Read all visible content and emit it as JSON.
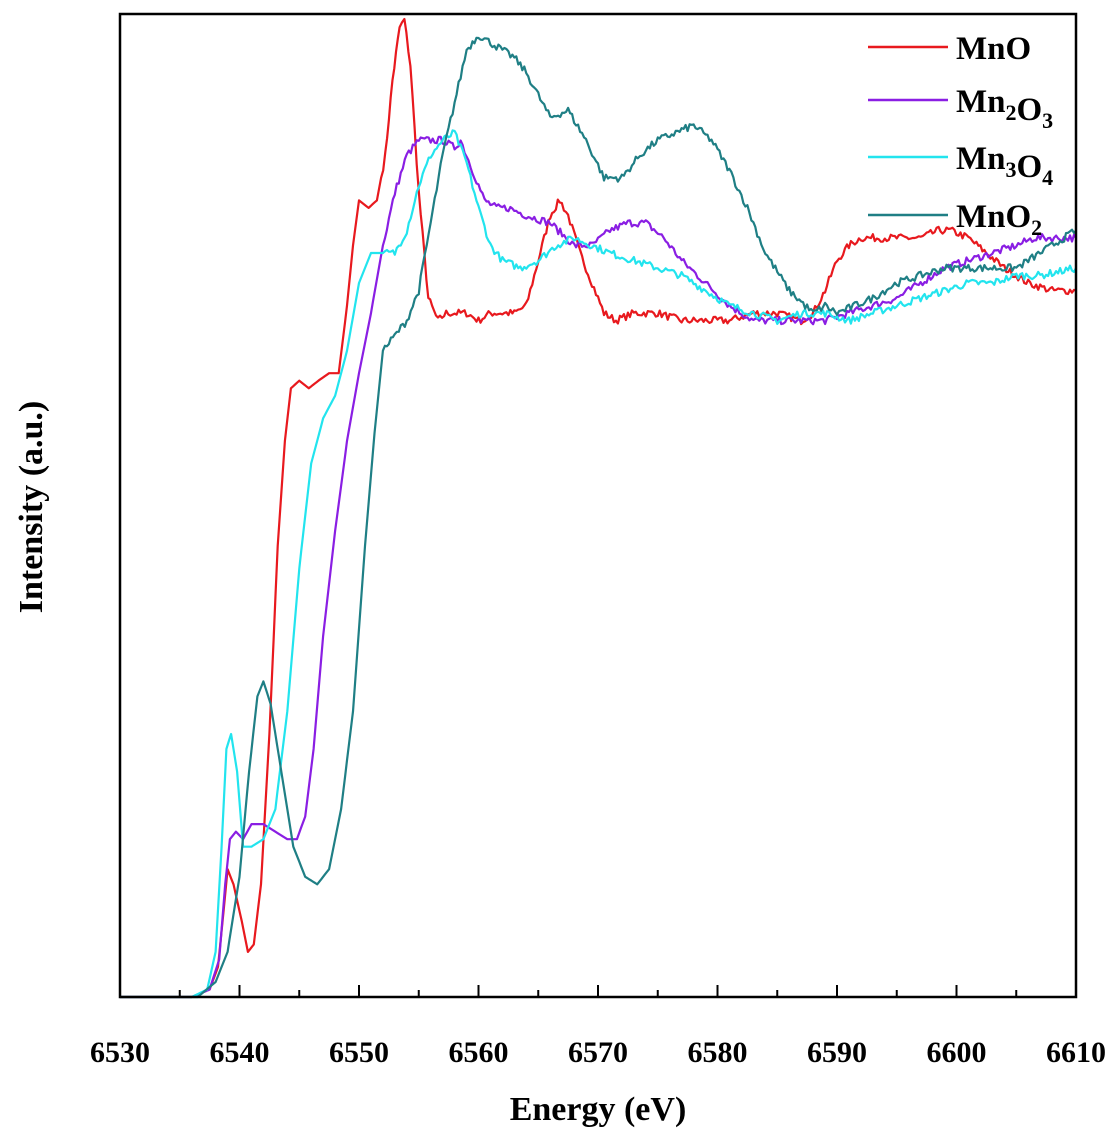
{
  "chart_data": {
    "type": "line",
    "title": "",
    "xlabel": "Energy (eV)",
    "ylabel": "Intensity (a.u.)",
    "xlim": [
      6530,
      6610
    ],
    "ylim": [
      0,
      1.3
    ],
    "xticks": [
      6530,
      6540,
      6550,
      6560,
      6570,
      6580,
      6590,
      6600,
      6610
    ],
    "y_tick_labels": false,
    "grid": false,
    "legend_position": "top-right",
    "series": [
      {
        "name": "MnO",
        "legend_parts": [
          {
            "t": "MnO",
            "sub": false
          }
        ],
        "color": "#e8191e",
        "x": [
          6530,
          6536,
          6537.5,
          6538.2,
          6538.7,
          6539.0,
          6539.5,
          6540.2,
          6540.7,
          6541.2,
          6541.8,
          6542.5,
          6543.2,
          6543.8,
          6544.3,
          6545.0,
          6545.8,
          6546.6,
          6547.5,
          6548.3,
          6549.0,
          6549.5,
          6550.0,
          6550.8,
          6551.5,
          6552.2,
          6552.8,
          6553.4,
          6553.8,
          6554.3,
          6555.0,
          6555.8,
          6556.6,
          6557.3,
          6558.0,
          6559.0,
          6560.0,
          6561.0,
          6562.0,
          6563.0,
          6564.0,
          6565.0,
          6566.0,
          6566.8,
          6567.5,
          6568.5,
          6569.5,
          6570.5,
          6571.5,
          6573.0,
          6575.0,
          6577.0,
          6579.0,
          6581.0,
          6583.0,
          6585.0,
          6587.0,
          6588.0,
          6589.0,
          6590.0,
          6591.0,
          6592.0,
          6593.0,
          6595.0,
          6597.0,
          6598.5,
          6599.5,
          6601.0,
          6602.5,
          6604.0,
          6606.0,
          6608.0,
          6610.0
        ],
        "y": [
          0.0,
          0.0,
          0.01,
          0.04,
          0.12,
          0.17,
          0.15,
          0.1,
          0.06,
          0.07,
          0.15,
          0.35,
          0.6,
          0.74,
          0.81,
          0.82,
          0.81,
          0.82,
          0.83,
          0.83,
          0.92,
          1.0,
          1.06,
          1.05,
          1.06,
          1.12,
          1.22,
          1.29,
          1.3,
          1.24,
          1.07,
          0.93,
          0.9,
          0.91,
          0.91,
          0.91,
          0.9,
          0.91,
          0.91,
          0.91,
          0.92,
          0.98,
          1.04,
          1.06,
          1.04,
          0.99,
          0.95,
          0.91,
          0.9,
          0.91,
          0.91,
          0.9,
          0.9,
          0.9,
          0.91,
          0.91,
          0.9,
          0.91,
          0.94,
          0.98,
          1.0,
          1.01,
          1.01,
          1.01,
          1.01,
          1.02,
          1.02,
          1.01,
          0.99,
          0.97,
          0.95,
          0.94,
          0.94
        ]
      },
      {
        "name": "Mn2O3",
        "legend_parts": [
          {
            "t": "Mn",
            "sub": false
          },
          {
            "t": "2",
            "sub": true
          },
          {
            "t": "O",
            "sub": false
          },
          {
            "t": "3",
            "sub": true
          }
        ],
        "color": "#8a1ee3",
        "x": [
          6530,
          6536,
          6537.5,
          6538.3,
          6538.8,
          6539.2,
          6539.7,
          6540.3,
          6541.0,
          6542.0,
          6543.0,
          6544.0,
          6544.8,
          6545.5,
          6546.2,
          6547.0,
          6548.0,
          6549.0,
          6550.0,
          6551.0,
          6552.0,
          6553.0,
          6554.0,
          6555.0,
          6556.0,
          6557.0,
          6558.0,
          6558.5,
          6559.5,
          6560.5,
          6561.5,
          6562.5,
          6564.0,
          6566.0,
          6568.0,
          6569.5,
          6571.0,
          6572.5,
          6574.0,
          6575.5,
          6577.0,
          6579.0,
          6581.0,
          6583.0,
          6585.0,
          6587.0,
          6589.0,
          6591.0,
          6593.0,
          6595.0,
          6597.0,
          6599.0,
          6601.0,
          6603.0,
          6605.0,
          6606.5,
          6608.0,
          6610.0
        ],
        "y": [
          0.0,
          0.0,
          0.01,
          0.05,
          0.15,
          0.21,
          0.22,
          0.21,
          0.23,
          0.23,
          0.22,
          0.21,
          0.21,
          0.24,
          0.33,
          0.48,
          0.62,
          0.74,
          0.83,
          0.91,
          1.0,
          1.07,
          1.12,
          1.14,
          1.14,
          1.14,
          1.13,
          1.14,
          1.1,
          1.06,
          1.05,
          1.05,
          1.04,
          1.03,
          1.0,
          1.0,
          1.02,
          1.03,
          1.03,
          1.01,
          0.98,
          0.95,
          0.92,
          0.9,
          0.9,
          0.9,
          0.9,
          0.91,
          0.92,
          0.93,
          0.95,
          0.97,
          0.98,
          0.99,
          1.0,
          1.01,
          1.01,
          1.01
        ]
      },
      {
        "name": "Mn3O4",
        "legend_parts": [
          {
            "t": "Mn",
            "sub": false
          },
          {
            "t": "3",
            "sub": true
          },
          {
            "t": "O",
            "sub": false
          },
          {
            "t": "4",
            "sub": true
          }
        ],
        "color": "#22e4ee",
        "x": [
          6530,
          6536,
          6537.3,
          6538.0,
          6538.5,
          6538.9,
          6539.3,
          6539.8,
          6540.3,
          6541.0,
          6542.0,
          6543.0,
          6544.0,
          6545.0,
          6546.0,
          6547.0,
          6548.0,
          6549.0,
          6550.0,
          6551.0,
          6552.0,
          6553.0,
          6554.0,
          6555.0,
          6556.0,
          6557.0,
          6558.0,
          6559.0,
          6560.0,
          6561.0,
          6562.0,
          6563.5,
          6565.0,
          6566.5,
          6568.0,
          6569.5,
          6571.0,
          6573.0,
          6575.0,
          6577.0,
          6579.0,
          6581.0,
          6583.0,
          6585.0,
          6587.0,
          6589.0,
          6591.0,
          6593.0,
          6595.0,
          6597.0,
          6599.0,
          6601.0,
          6603.0,
          6605.0,
          6607.0,
          6610.0
        ],
        "y": [
          0.0,
          0.0,
          0.01,
          0.06,
          0.2,
          0.33,
          0.35,
          0.3,
          0.2,
          0.2,
          0.21,
          0.25,
          0.38,
          0.57,
          0.71,
          0.77,
          0.8,
          0.86,
          0.95,
          0.99,
          0.99,
          0.99,
          1.02,
          1.08,
          1.12,
          1.14,
          1.15,
          1.11,
          1.05,
          1.0,
          0.98,
          0.97,
          0.98,
          1.0,
          1.01,
          1.0,
          0.99,
          0.98,
          0.97,
          0.96,
          0.94,
          0.92,
          0.91,
          0.9,
          0.91,
          0.91,
          0.9,
          0.91,
          0.92,
          0.93,
          0.94,
          0.95,
          0.95,
          0.96,
          0.96,
          0.97
        ]
      },
      {
        "name": "MnO2",
        "legend_parts": [
          {
            "t": "MnO",
            "sub": false
          },
          {
            "t": "2",
            "sub": true
          }
        ],
        "color": "#1f7f85",
        "x": [
          6530,
          6536.5,
          6538.0,
          6539.0,
          6540.0,
          6540.8,
          6541.5,
          6542.0,
          6542.6,
          6543.5,
          6544.5,
          6545.5,
          6546.5,
          6547.5,
          6548.5,
          6549.5,
          6550.5,
          6551.3,
          6552.0,
          6553.0,
          6554.0,
          6555.0,
          6556.0,
          6557.0,
          6558.0,
          6559.0,
          6560.0,
          6561.0,
          6562.0,
          6563.0,
          6564.0,
          6565.0,
          6566.0,
          6567.5,
          6569.0,
          6570.5,
          6572.0,
          6573.5,
          6575.0,
          6576.5,
          6578.0,
          6579.5,
          6581.0,
          6582.5,
          6584.0,
          6586.0,
          6588.0,
          6589.0,
          6590.0,
          6591.5,
          6593.0,
          6595.0,
          6597.0,
          6599.0,
          6601.0,
          6603.0,
          6605.0,
          6607.0,
          6610.0
        ],
        "y": [
          0.0,
          0.0,
          0.02,
          0.06,
          0.16,
          0.3,
          0.4,
          0.42,
          0.39,
          0.3,
          0.2,
          0.16,
          0.15,
          0.17,
          0.25,
          0.38,
          0.6,
          0.75,
          0.86,
          0.88,
          0.9,
          0.94,
          1.03,
          1.12,
          1.19,
          1.26,
          1.28,
          1.27,
          1.26,
          1.25,
          1.23,
          1.2,
          1.17,
          1.18,
          1.14,
          1.09,
          1.09,
          1.12,
          1.14,
          1.15,
          1.16,
          1.14,
          1.1,
          1.05,
          0.99,
          0.94,
          0.91,
          0.92,
          0.91,
          0.92,
          0.93,
          0.95,
          0.96,
          0.97,
          0.97,
          0.97,
          0.97,
          0.99,
          1.02
        ]
      }
    ]
  }
}
